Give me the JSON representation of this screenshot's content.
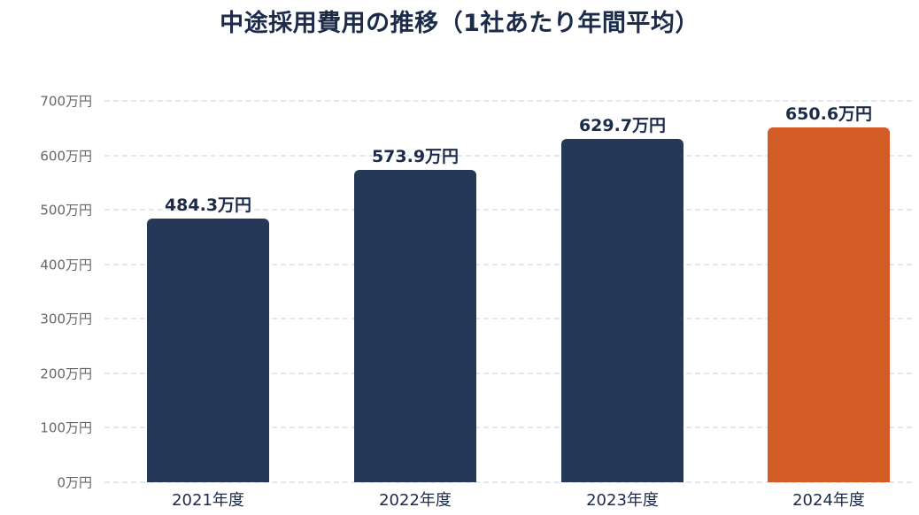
{
  "chart_data": {
    "type": "bar",
    "title": "中途採用費用の推移（1社あたり年間平均）",
    "xlabel": "",
    "ylabel": "",
    "categories": [
      "2021年度",
      "2022年度",
      "2023年度",
      "2024年度"
    ],
    "values": [
      484.3,
      573.9,
      629.7,
      650.6
    ],
    "value_labels": [
      "484.3万円",
      "573.9万円",
      "629.7万円",
      "650.6万円"
    ],
    "unit": "万円",
    "ylim": [
      0,
      700
    ],
    "yticks": [
      0,
      100,
      200,
      300,
      400,
      500,
      600,
      700
    ],
    "ytick_labels": [
      "0万円",
      "100万円",
      "200万円",
      "300万円",
      "400万円",
      "500万円",
      "600万円",
      "700万円"
    ],
    "grid": true,
    "legend": null,
    "bar_colors": [
      "#263858",
      "#263858",
      "#263858",
      "#D35B26"
    ],
    "highlight_category": "2024年度"
  },
  "colors": {
    "primary": "#263858",
    "highlight": "#D35B26",
    "title": "#1c2b4a",
    "axis_text": "#666666",
    "grid": "#e4e7ee"
  }
}
